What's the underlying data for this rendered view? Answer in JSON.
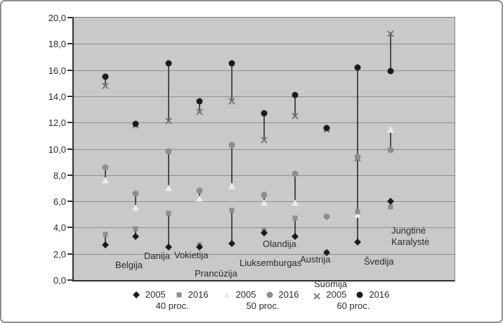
{
  "figure": {
    "background": "#ffffff",
    "border_color": "#8f8f8f"
  },
  "chart_data": {
    "type": "scatter",
    "title": "",
    "xlabel": "",
    "ylabel": "",
    "ylim": [
      0,
      20
    ],
    "ytick_step": 2,
    "decimal_separator": ",",
    "ytick_labels": [
      "20,0",
      "18,0",
      "16,0",
      "14,0",
      "12,0",
      "10,0",
      "8,0",
      "6,0",
      "4,0",
      "2,0",
      "0,0"
    ],
    "grid": "horizontal",
    "plot_bg_color": "#c9c9cb",
    "gridline_color": "#8f8f92",
    "dropline_color": "#4a4a4a",
    "legend_position": "bottom",
    "categories": [
      "Belgija",
      "Danija",
      "Vokietija",
      "Prancūzija",
      "Liuksemburgas",
      "Olandija",
      "Austrija",
      "Suomija",
      "Švedija",
      "Jungtinė Karalystė"
    ],
    "series": [
      {
        "name": "2005 (40 proc.)",
        "marker": "diamond-black",
        "color": "#1b1b1b",
        "values": [
          2.7,
          3.3,
          2.5,
          2.5,
          2.8,
          3.6,
          3.3,
          2.1,
          2.9,
          6.0
        ]
      },
      {
        "name": "2016 (40 proc.)",
        "marker": "square-gray",
        "color": "#8d8d8f",
        "values": [
          3.5,
          3.9,
          5.1,
          2.7,
          5.3,
          3.8,
          4.7,
          2.1,
          5.2,
          5.6
        ]
      },
      {
        "name": "2005 (50 proc.)",
        "marker": "triangle-light",
        "color": "#ececec",
        "values": [
          7.6,
          5.5,
          7.0,
          6.2,
          7.2,
          5.9,
          5.9,
          4.8,
          5.0,
          11.5
        ]
      },
      {
        "name": "2016 (50 proc.)",
        "marker": "circle-gray",
        "color": "#8d8d8f",
        "values": [
          8.6,
          6.6,
          9.8,
          6.8,
          10.3,
          6.5,
          8.1,
          4.8,
          9.4,
          9.9
        ]
      },
      {
        "name": "2005 (60 proc.)",
        "marker": "x-gray",
        "color": "#6e6e6e",
        "values": [
          14.9,
          11.9,
          12.2,
          12.9,
          13.7,
          10.8,
          12.6,
          11.6,
          9.4,
          18.9
        ]
      },
      {
        "name": "2016 (60 proc.)",
        "marker": "circle-black",
        "color": "#1b1b1b",
        "values": [
          15.5,
          11.9,
          16.5,
          13.6,
          16.5,
          12.7,
          14.1,
          11.6,
          16.2,
          15.9
        ]
      }
    ],
    "dropline_pairs": [
      [
        0,
        1
      ],
      [
        2,
        3
      ],
      [
        4,
        5
      ]
    ],
    "legend": {
      "groups": [
        {
          "label": "40 proc.",
          "items": [
            {
              "marker": "diamond-black",
              "text": "2005"
            },
            {
              "marker": "square-gray",
              "text": "2016"
            }
          ]
        },
        {
          "label": "50 proc.",
          "items": [
            {
              "marker": "triangle-light",
              "text": "2005"
            },
            {
              "marker": "circle-gray",
              "text": "2016"
            }
          ]
        },
        {
          "label": "60 proc.",
          "items": [
            {
              "marker": "x-gray",
              "text": "2005"
            },
            {
              "marker": "circle-black",
              "text": "2016"
            }
          ]
        }
      ]
    }
  }
}
